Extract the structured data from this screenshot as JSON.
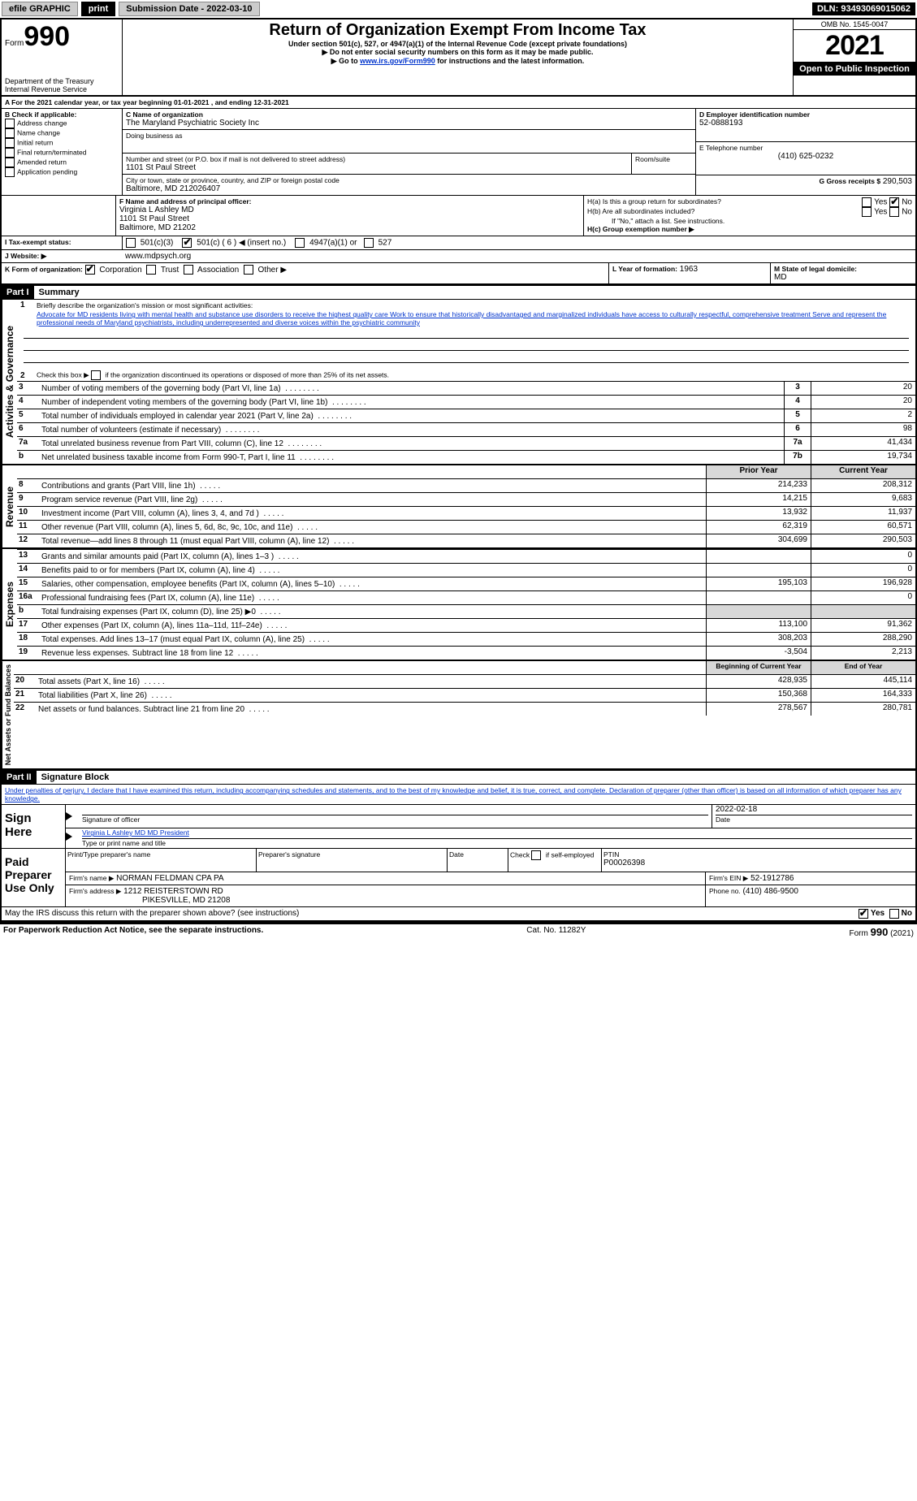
{
  "topbar": {
    "efile1": "efile GRAPHIC",
    "efile2": "print",
    "subdate_label": "Submission Date - 2022-03-10",
    "dln": "DLN: 93493069015062"
  },
  "header": {
    "form_label": "Form",
    "form_number": "990",
    "title": "Return of Organization Exempt From Income Tax",
    "subtitle": "Under section 501(c), 527, or 4947(a)(1) of the Internal Revenue Code (except private foundations)",
    "ssn_note": "▶ Do not enter social security numbers on this form as it may be made public.",
    "goto_pre": "▶ Go to ",
    "goto_link": "www.irs.gov/Form990",
    "goto_post": " for instructions and the latest information.",
    "dept": "Department of the Treasury",
    "irs": "Internal Revenue Service",
    "omb": "OMB No. 1545-0047",
    "year": "2021",
    "open": "Open to Public Inspection"
  },
  "blockA": {
    "A_line": "A For the 2021 calendar year, or tax year beginning 01-01-2021     , and ending 12-31-2021",
    "B_label": "B Check if applicable:",
    "b_opts": [
      "Address change",
      "Name change",
      "Initial return",
      "Final return/terminated",
      "Amended return",
      "Application pending"
    ],
    "C_label": "C Name of organization",
    "org_name": "The Maryland Psychiatric Society Inc",
    "dba_label": "Doing business as",
    "addr_label": "Number and street (or P.O. box if mail is not delivered to street address)",
    "room_label": "Room/suite",
    "addr": "1101 St Paul Street",
    "city_label": "City or town, state or province, country, and ZIP or foreign postal code",
    "city": "Baltimore, MD  212026407",
    "D_label": "D Employer identification number",
    "ein": "52-0888193",
    "E_label": "E Telephone number",
    "phone": "(410) 625-0232",
    "G_label": "G Gross receipts $",
    "gross": "290,503",
    "F_label": "F  Name and address of principal officer:",
    "officer_name": "Virginia L Ashley MD",
    "officer_addr1": "1101 St Paul Street",
    "officer_addr2": "Baltimore, MD  21202",
    "Ha_label": "H(a)  Is this a group return for subordinates?",
    "Hb_label": "H(b)  Are all subordinates included?",
    "H_note": "If \"No,\" attach a list. See instructions.",
    "Hc_label": "H(c)  Group exemption number ▶",
    "yes": "Yes",
    "no": "No",
    "I_label": "I  Tax-exempt status:",
    "i_501c3": "501(c)(3)",
    "i_501c": "501(c) ( 6 ) ◀ (insert no.)",
    "i_4947": "4947(a)(1) or",
    "i_527": "527",
    "J_label": "J  Website: ▶",
    "website": "www.mdpsych.org",
    "K_label": "K Form of organization:",
    "k_opts": [
      "Corporation",
      "Trust",
      "Association",
      "Other ▶"
    ],
    "L_label": "L Year of formation:",
    "L_val": "1963",
    "M_label": "M State of legal domicile:",
    "M_val": "MD"
  },
  "part1": {
    "hdr": "Part I",
    "title": "Summary",
    "l1": "Briefly describe the organization's mission or most significant activities:",
    "mission": "Advocate for MD residents living with mental health and substance use disorders to receive the highest quality care Work to ensure that historically disadvantaged and marginalized individuals have access to culturally respectful, comprehensive treatment Serve and represent the professional needs of Maryland psychiatrists, including underrepresented and diverse voices within the psychiatric community",
    "l2": "Check this box ▶      if the organization discontinued its operations or disposed of more than 25% of its net assets.",
    "rows_gov": [
      {
        "n": "3",
        "t": "Number of voting members of the governing body (Part VI, line 1a)",
        "box": "3",
        "v": "20"
      },
      {
        "n": "4",
        "t": "Number of independent voting members of the governing body (Part VI, line 1b)",
        "box": "4",
        "v": "20"
      },
      {
        "n": "5",
        "t": "Total number of individuals employed in calendar year 2021 (Part V, line 2a)",
        "box": "5",
        "v": "2"
      },
      {
        "n": "6",
        "t": "Total number of volunteers (estimate if necessary)",
        "box": "6",
        "v": "98"
      },
      {
        "n": "7a",
        "t": "Total unrelated business revenue from Part VIII, column (C), line 12",
        "box": "7a",
        "v": "41,434"
      },
      {
        "n": "b",
        "t": "Net unrelated business taxable income from Form 990-T, Part I, line 11",
        "box": "7b",
        "v": "19,734"
      }
    ],
    "col_prior": "Prior Year",
    "col_curr": "Current Year",
    "rows_rev": [
      {
        "n": "8",
        "t": "Contributions and grants (Part VIII, line 1h)",
        "p": "214,233",
        "c": "208,312"
      },
      {
        "n": "9",
        "t": "Program service revenue (Part VIII, line 2g)",
        "p": "14,215",
        "c": "9,683"
      },
      {
        "n": "10",
        "t": "Investment income (Part VIII, column (A), lines 3, 4, and 7d )",
        "p": "13,932",
        "c": "11,937"
      },
      {
        "n": "11",
        "t": "Other revenue (Part VIII, column (A), lines 5, 6d, 8c, 9c, 10c, and 11e)",
        "p": "62,319",
        "c": "60,571"
      },
      {
        "n": "12",
        "t": "Total revenue—add lines 8 through 11 (must equal Part VIII, column (A), line 12)",
        "p": "304,699",
        "c": "290,503"
      }
    ],
    "rows_exp": [
      {
        "n": "13",
        "t": "Grants and similar amounts paid (Part IX, column (A), lines 1–3 )",
        "p": "",
        "c": "0"
      },
      {
        "n": "14",
        "t": "Benefits paid to or for members (Part IX, column (A), line 4)",
        "p": "",
        "c": "0"
      },
      {
        "n": "15",
        "t": "Salaries, other compensation, employee benefits (Part IX, column (A), lines 5–10)",
        "p": "195,103",
        "c": "196,928"
      },
      {
        "n": "16a",
        "t": "Professional fundraising fees (Part IX, column (A), line 11e)",
        "p": "",
        "c": "0"
      },
      {
        "n": "b",
        "t": "Total fundraising expenses (Part IX, column (D), line 25) ▶0",
        "p": "shade",
        "c": "shade"
      },
      {
        "n": "17",
        "t": "Other expenses (Part IX, column (A), lines 11a–11d, 11f–24e)",
        "p": "113,100",
        "c": "91,362"
      },
      {
        "n": "18",
        "t": "Total expenses. Add lines 13–17 (must equal Part IX, column (A), line 25)",
        "p": "308,203",
        "c": "288,290"
      },
      {
        "n": "19",
        "t": "Revenue less expenses. Subtract line 18 from line 12",
        "p": "-3,504",
        "c": "2,213"
      }
    ],
    "col_beg": "Beginning of Current Year",
    "col_end": "End of Year",
    "rows_net": [
      {
        "n": "20",
        "t": "Total assets (Part X, line 16)",
        "p": "428,935",
        "c": "445,114"
      },
      {
        "n": "21",
        "t": "Total liabilities (Part X, line 26)",
        "p": "150,368",
        "c": "164,333"
      },
      {
        "n": "22",
        "t": "Net assets or fund balances. Subtract line 21 from line 20",
        "p": "278,567",
        "c": "280,781"
      }
    ],
    "side_gov": "Activities & Governance",
    "side_rev": "Revenue",
    "side_exp": "Expenses",
    "side_net": "Net Assets or Fund Balances"
  },
  "part2": {
    "hdr": "Part II",
    "title": "Signature Block",
    "penalty": "Under penalties of perjury, I declare that I have examined this return, including accompanying schedules and statements, and to the best of my knowledge and belief, it is true, correct, and complete. Declaration of preparer (other than officer) is based on all information of which preparer has any knowledge.",
    "sign_here": "Sign Here",
    "sig_officer": "Signature of officer",
    "sig_date_lbl": "Date",
    "sig_date": "2022-02-18",
    "sig_name": "Virginia L Ashley MD MD  President",
    "sig_name_lbl": "Type or print name and title",
    "paid": "Paid Preparer Use Only",
    "pp_name_lbl": "Print/Type preparer's name",
    "pp_sig_lbl": "Preparer's signature",
    "pp_date_lbl": "Date",
    "pp_check_lbl": "Check         if self-employed",
    "ptin_lbl": "PTIN",
    "ptin": "P00026398",
    "firm_name_lbl": "Firm's name    ▶",
    "firm_name": "NORMAN FELDMAN CPA PA",
    "firm_ein_lbl": "Firm's EIN ▶",
    "firm_ein": "52-1912786",
    "firm_addr_lbl": "Firm's address ▶",
    "firm_addr1": "1212 REISTERSTOWN RD",
    "firm_addr2": "PIKESVILLE, MD  21208",
    "firm_phone_lbl": "Phone no.",
    "firm_phone": "(410) 486-9500",
    "may_irs": "May the IRS discuss this return with the preparer shown above? (see instructions)"
  },
  "footer": {
    "pra": "For Paperwork Reduction Act Notice, see the separate instructions.",
    "cat": "Cat. No. 11282Y",
    "form": "Form 990 (2021)"
  }
}
